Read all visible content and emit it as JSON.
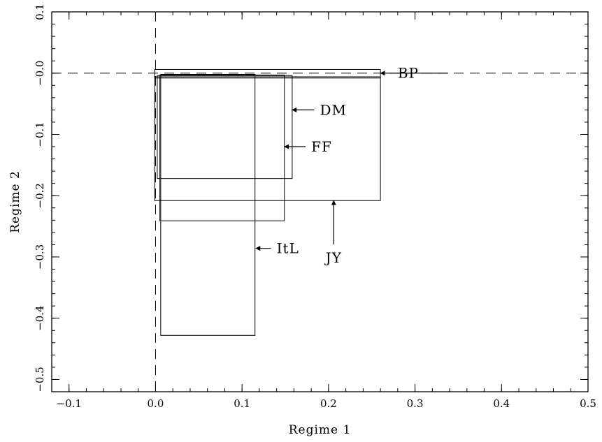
{
  "chart_data": {
    "type": "rectangles",
    "xlabel": "Regime 1",
    "ylabel": "Regime 2",
    "xlim": [
      -0.12,
      0.5
    ],
    "ylim": [
      -0.52,
      0.1
    ],
    "x_ticks": [
      {
        "value": -0.1,
        "label": "−0.1"
      },
      {
        "value": 0.0,
        "label": "0.0"
      },
      {
        "value": 0.1,
        "label": "0.1"
      },
      {
        "value": 0.2,
        "label": "0.2"
      },
      {
        "value": 0.3,
        "label": "0.3"
      },
      {
        "value": 0.4,
        "label": "0.4"
      },
      {
        "value": 0.5,
        "label": "0.5"
      }
    ],
    "y_ticks": [
      {
        "value": 0.1,
        "label": "0.1"
      },
      {
        "value": 0.0,
        "label": "−0.0"
      },
      {
        "value": -0.1,
        "label": "−0.1"
      },
      {
        "value": -0.2,
        "label": "−0.2"
      },
      {
        "value": -0.3,
        "label": "−0.3"
      },
      {
        "value": -0.4,
        "label": "−0.4"
      },
      {
        "value": -0.5,
        "label": "−0.5"
      }
    ],
    "x_minor_step": 0.02,
    "y_minor_step": 0.02,
    "reference_lines": {
      "x": 0.0,
      "y": 0.0,
      "style": "dashed"
    },
    "series": [
      {
        "name": "BP",
        "x_range": [
          -0.001,
          0.26
        ],
        "y_range": [
          -0.008,
          0.006
        ],
        "label_at": [
          0.28,
          0.0
        ],
        "arrow_to": [
          0.26,
          0.0
        ]
      },
      {
        "name": "DM",
        "x_range": [
          0.002,
          0.158
        ],
        "y_range": [
          -0.172,
          -0.004
        ],
        "label_at": [
          0.19,
          -0.06
        ],
        "arrow_to": [
          0.158,
          -0.06
        ]
      },
      {
        "name": "FF",
        "x_range": [
          0.005,
          0.149
        ],
        "y_range": [
          -0.241,
          -0.003
        ],
        "label_at": [
          0.18,
          -0.12
        ],
        "arrow_to": [
          0.149,
          -0.12
        ]
      },
      {
        "name": "JY",
        "x_range": [
          -0.001,
          0.26
        ],
        "y_range": [
          -0.208,
          -0.006
        ],
        "label_at": [
          0.21,
          -0.3
        ],
        "arrow_to": [
          0.206,
          -0.208
        ]
      },
      {
        "name": "ItL",
        "x_range": [
          0.006,
          0.115
        ],
        "y_range": [
          -0.428,
          -0.002
        ],
        "label_at": [
          0.14,
          -0.29
        ],
        "arrow_to": [
          0.116,
          -0.286
        ]
      }
    ]
  }
}
